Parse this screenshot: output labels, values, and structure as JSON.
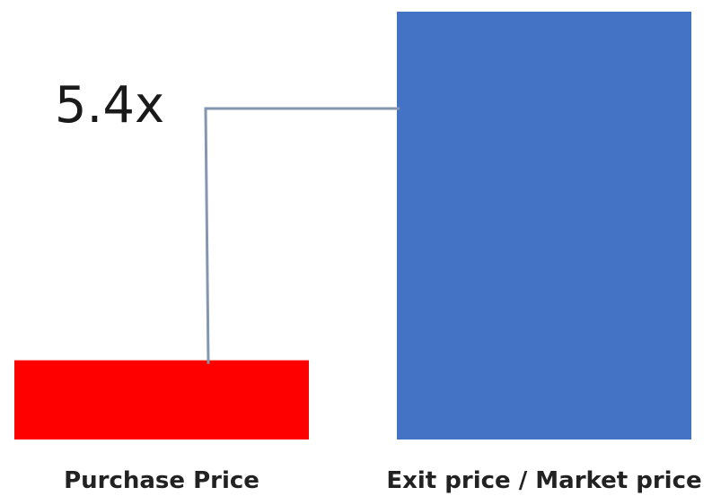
{
  "chart_data": {
    "type": "bar",
    "categories": [
      "Purchase Price",
      "Exit price / Market price"
    ],
    "values": [
      1,
      5.4
    ],
    "ylim": [
      0,
      5.4
    ],
    "title": "",
    "xlabel": "",
    "ylabel": "",
    "grid": false,
    "annotation": {
      "text": "5.4x",
      "from_category": "Purchase Price",
      "to_category": "Exit price / Market price"
    },
    "colors": {
      "Purchase Price": "#ff0000",
      "Exit price / Market price": "#4472c4",
      "connector": "#8496b0"
    }
  }
}
